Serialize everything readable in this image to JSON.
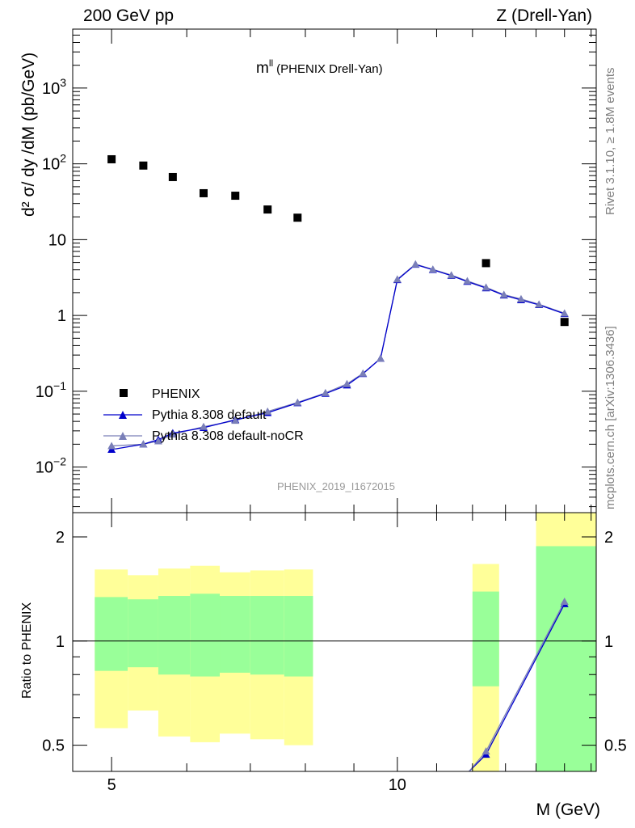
{
  "header": {
    "left": "200 GeV pp",
    "right": "Z (Drell-Yan)"
  },
  "side_labels": {
    "rivet": "Rivet 3.1.10, ≥ 1.8M events",
    "mcplots": "mcplots.cern.ch [arXiv:1306.3436]"
  },
  "chart_data": [
    {
      "type": "scatter",
      "title": "m",
      "title_superscript": "ll",
      "title_suffix": "(PHENIX Drell-Yan)",
      "watermark": "PHENIX_2019_I1672015",
      "ylabel": "d² σ/ dy /dM (pb/GeV)",
      "y_scale": "log",
      "ylim": [
        0.0025,
        6000
      ],
      "xlim": [
        4.55,
        16.2
      ],
      "x_scale": "log",
      "y_ticks": [
        {
          "value": 0.01,
          "label": "10",
          "sup": "−2"
        },
        {
          "value": 0.1,
          "label": "10",
          "sup": "−1"
        },
        {
          "value": 1,
          "label": "1",
          "sup": ""
        },
        {
          "value": 10,
          "label": "10",
          "sup": ""
        },
        {
          "value": 100,
          "label": "10",
          "sup": "2"
        },
        {
          "value": 1000,
          "label": "10",
          "sup": "3"
        }
      ],
      "legend_position": "bottom-left",
      "series": [
        {
          "name": "PHENIX",
          "marker": "square",
          "color": "#000000",
          "x": [
            5.0,
            5.4,
            5.8,
            6.25,
            6.75,
            7.3,
            7.85,
            12.4,
            15.0
          ],
          "y": [
            115,
            95,
            67,
            41,
            38,
            25,
            19.5,
            4.9,
            0.82
          ]
        },
        {
          "name": "Pythia 8.308 default",
          "marker": "triangle",
          "color": "#0000cc",
          "x": [
            5.0,
            5.4,
            5.6,
            5.8,
            6.25,
            6.75,
            7.3,
            7.85,
            8.4,
            8.85,
            9.2,
            9.6,
            10.0,
            10.45,
            10.9,
            11.4,
            11.85,
            12.4,
            12.95,
            13.5,
            14.1,
            15.0
          ],
          "y": [
            0.017,
            0.02,
            0.023,
            0.028,
            0.033,
            0.042,
            0.052,
            0.07,
            0.093,
            0.12,
            0.17,
            0.27,
            2.95,
            4.7,
            4.0,
            3.35,
            2.8,
            2.3,
            1.85,
            1.6,
            1.38,
            1.05
          ]
        },
        {
          "name": "Pythia 8.308 default-noCR",
          "marker": "triangle",
          "color": "#7a7fb8",
          "x": [
            5.0,
            5.4,
            5.6,
            5.8,
            6.25,
            6.75,
            7.3,
            7.85,
            8.4,
            8.85,
            9.2,
            9.6,
            10.0,
            10.45,
            10.9,
            11.4,
            11.85,
            12.4,
            12.95,
            13.5,
            14.1,
            15.0
          ],
          "y": [
            0.019,
            0.02,
            0.022,
            0.027,
            0.034,
            0.041,
            0.054,
            0.071,
            0.095,
            0.125,
            0.172,
            0.27,
            3.0,
            4.75,
            4.05,
            3.4,
            2.85,
            2.35,
            1.88,
            1.65,
            1.4,
            1.07
          ]
        }
      ]
    },
    {
      "type": "area",
      "ylabel": "Ratio to PHENIX",
      "xlabel": "M (GeV)",
      "y_scale": "log",
      "ylim": [
        0.42,
        2.35
      ],
      "xlim": [
        4.55,
        16.2
      ],
      "x_scale": "log",
      "y_ticks": [
        {
          "value": 0.5,
          "label": "0.5"
        },
        {
          "value": 1,
          "label": "1"
        },
        {
          "value": 2,
          "label": "2"
        }
      ],
      "x_ticks": [
        {
          "value": 5,
          "label": "5"
        },
        {
          "value": 10,
          "label": "10"
        }
      ],
      "reference_line": 1,
      "bands": [
        {
          "x0": 4.8,
          "x1": 5.2,
          "inner": [
            0.82,
            1.34
          ],
          "outer": [
            0.56,
            1.61
          ]
        },
        {
          "x0": 5.2,
          "x1": 5.6,
          "inner": [
            0.84,
            1.32
          ],
          "outer": [
            0.63,
            1.55
          ]
        },
        {
          "x0": 5.6,
          "x1": 6.05,
          "inner": [
            0.8,
            1.35
          ],
          "outer": [
            0.53,
            1.62
          ]
        },
        {
          "x0": 6.05,
          "x1": 6.5,
          "inner": [
            0.79,
            1.37
          ],
          "outer": [
            0.51,
            1.65
          ]
        },
        {
          "x0": 6.5,
          "x1": 7.0,
          "inner": [
            0.81,
            1.35
          ],
          "outer": [
            0.54,
            1.58
          ]
        },
        {
          "x0": 7.0,
          "x1": 7.6,
          "inner": [
            0.8,
            1.35
          ],
          "outer": [
            0.52,
            1.6
          ]
        },
        {
          "x0": 7.6,
          "x1": 8.15,
          "inner": [
            0.79,
            1.35
          ],
          "outer": [
            0.5,
            1.61
          ]
        },
        {
          "x0": 12.0,
          "x1": 12.8,
          "inner": [
            0.74,
            1.39
          ],
          "outer": [
            0.42,
            1.67
          ]
        },
        {
          "x0": 14.0,
          "x1": 16.2,
          "inner": [
            0.42,
            1.88
          ],
          "outer": [
            0.42,
            2.35
          ]
        }
      ],
      "series": [
        {
          "name": "Pythia 8.308 default",
          "color": "#0000cc",
          "x": [
            11.9,
            12.4,
            15.0
          ],
          "y": [
            0.33,
            0.47,
            1.28
          ]
        },
        {
          "name": "Pythia 8.308 default-noCR",
          "color": "#7a7fb8",
          "x": [
            11.9,
            12.4,
            15.0
          ],
          "y": [
            0.33,
            0.48,
            1.3
          ]
        }
      ]
    }
  ],
  "colors": {
    "band_inner": "#99ff99",
    "band_outer": "#ffff99",
    "axis": "#000000",
    "side_text": "#7f7f7f",
    "watermark": "#9a9a9a"
  }
}
